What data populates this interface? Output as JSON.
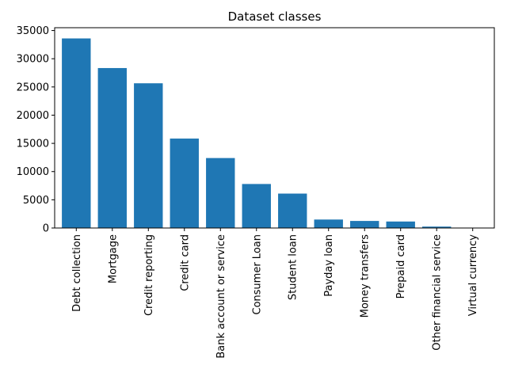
{
  "chart_data": {
    "type": "bar",
    "title": "Dataset classes",
    "xlabel": "",
    "ylabel": "",
    "categories": [
      "Debt collection",
      "Mortgage",
      "Credit reporting",
      "Credit card",
      "Bank account or service",
      "Consumer Loan",
      "Student loan",
      "Payday loan",
      "Money transfers",
      "Prepaid card",
      "Other financial service",
      "Virtual currency"
    ],
    "values": [
      33600,
      28350,
      25650,
      15850,
      12400,
      7800,
      6100,
      1500,
      1250,
      1150,
      250,
      15
    ],
    "ylim": [
      0,
      35500
    ],
    "yticks": [
      0,
      5000,
      10000,
      15000,
      20000,
      25000,
      30000,
      35000
    ],
    "bar_color": "#1f77b4",
    "grid": false,
    "legend": "none"
  }
}
